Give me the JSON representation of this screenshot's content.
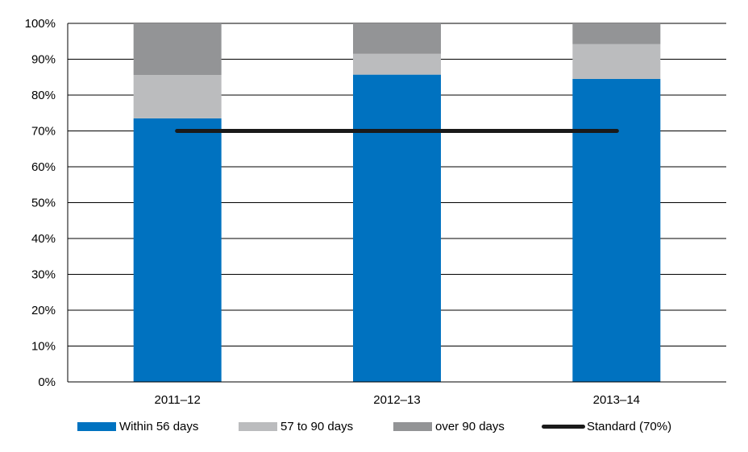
{
  "chart_data": {
    "type": "bar",
    "stacked": true,
    "categories": [
      "2011–12",
      "2012–13",
      "2013–14"
    ],
    "series": [
      {
        "name": "Within 56 days",
        "values": [
          73.5,
          85.7,
          84.5
        ],
        "color": "#0072C0"
      },
      {
        "name": "57 to 90 days",
        "values": [
          12.1,
          5.8,
          9.7
        ],
        "color": "#BBBCBE"
      },
      {
        "name": "over 90 days",
        "values": [
          14.4,
          8.5,
          5.8
        ],
        "color": "#939496"
      }
    ],
    "reference_line": {
      "name": "Standard (70%)",
      "value": 70,
      "color": "#1a1a1a"
    },
    "y_ticks": [
      "0%",
      "10%",
      "20%",
      "30%",
      "40%",
      "50%",
      "60%",
      "70%",
      "80%",
      "90%",
      "100%"
    ],
    "ylim": [
      0,
      100
    ],
    "grid": true,
    "legend_position": "bottom",
    "title": "",
    "xlabel": "",
    "ylabel": ""
  }
}
